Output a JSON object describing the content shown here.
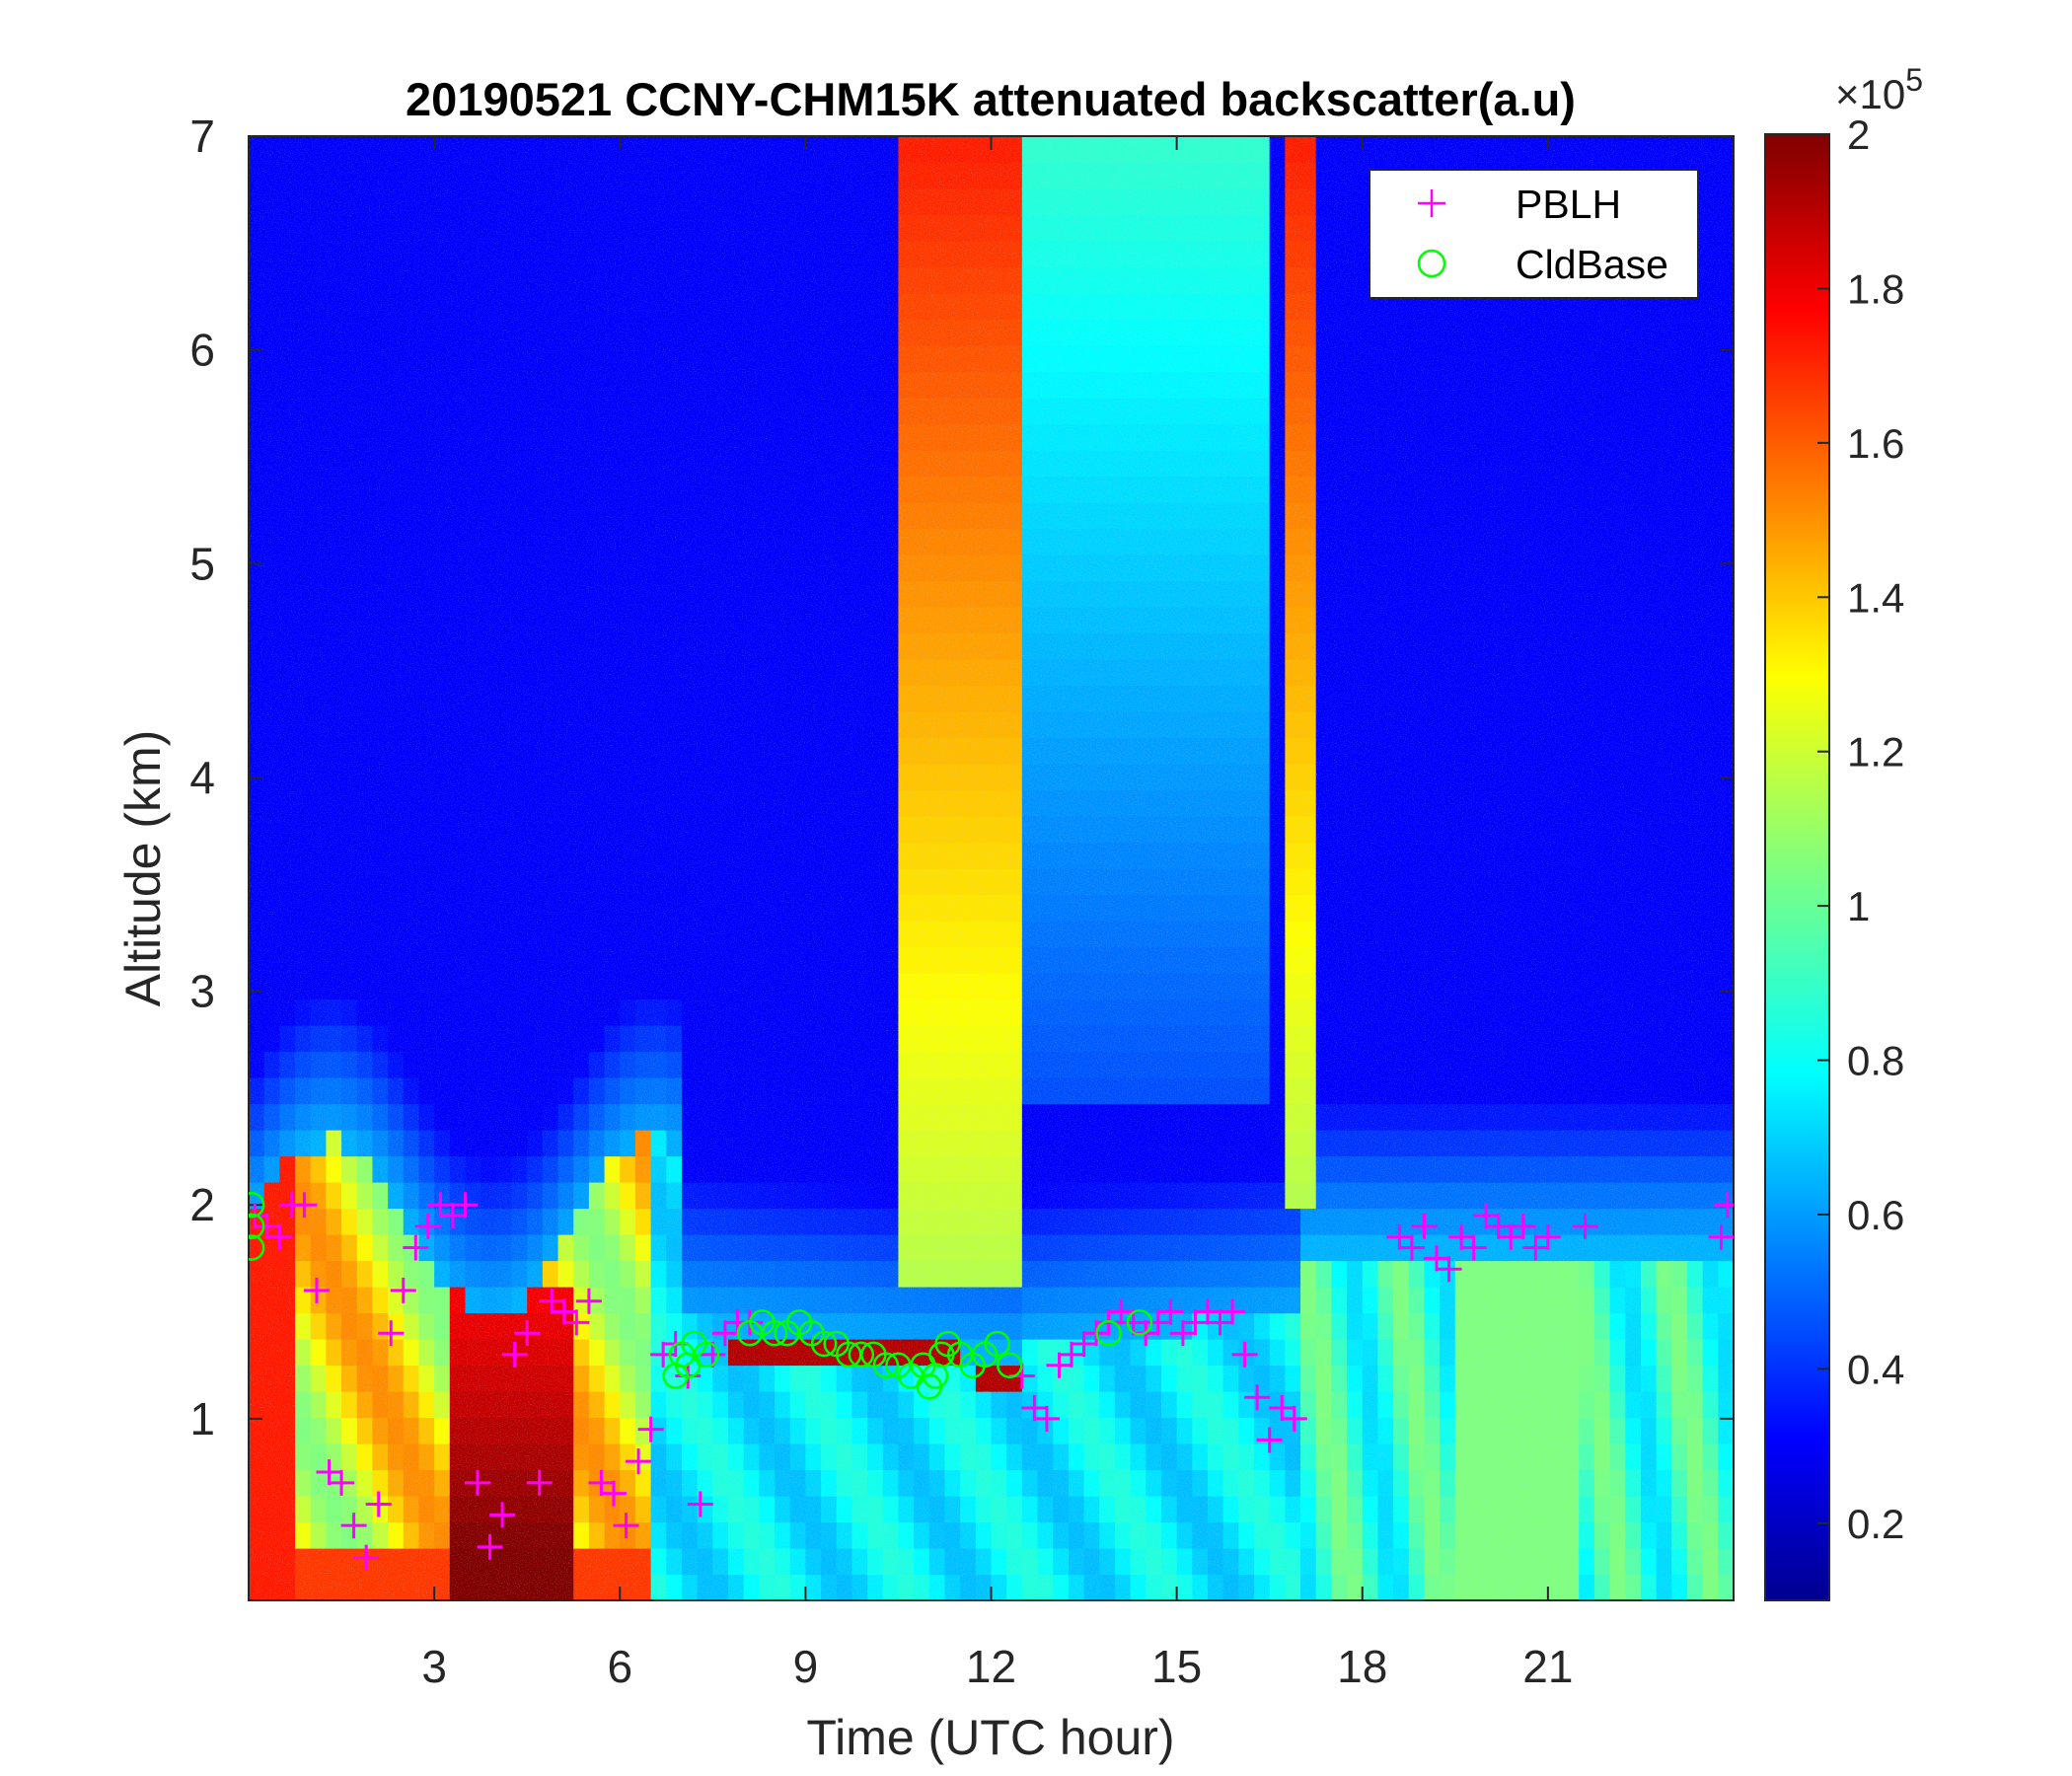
{
  "chart_data": {
    "type": "heatmap",
    "title": "20190521 CCNY-CHM15K attenuated backscatter(a.u)",
    "xlabel": "Time (UTC hour)",
    "ylabel": "Altitude (km)",
    "xlim": [
      0,
      24
    ],
    "ylim": [
      0.15,
      7
    ],
    "x_ticks": [
      3,
      6,
      9,
      12,
      15,
      18,
      21
    ],
    "y_ticks": [
      1,
      2,
      3,
      4,
      5,
      6,
      7
    ],
    "colorbar": {
      "colormap": "jet",
      "range": [
        0.1,
        2
      ],
      "ticks": [
        0.2,
        0.4,
        0.6,
        0.8,
        1,
        1.2,
        1.4,
        1.6,
        1.8,
        2
      ],
      "exponent_label": "×10",
      "exponent_power": "5"
    },
    "legend": {
      "position": "top-right",
      "entries": [
        {
          "label": "PBLH",
          "marker": "+",
          "color": "#ff00ff"
        },
        {
          "label": "CldBase",
          "marker": "o",
          "color": "#00ff00"
        }
      ]
    },
    "series": [
      {
        "name": "PBLH",
        "marker": "+",
        "color": "#ff00ff",
        "x": [
          0.1,
          0.3,
          0.5,
          0.7,
          0.9,
          1.1,
          1.3,
          1.5,
          1.7,
          1.9,
          2.1,
          2.3,
          2.5,
          2.7,
          2.9,
          3.1,
          3.3,
          3.5,
          3.7,
          3.9,
          4.1,
          4.3,
          4.5,
          4.7,
          4.9,
          5.1,
          5.3,
          5.5,
          5.7,
          5.9,
          6.1,
          6.3,
          6.5,
          6.7,
          6.9,
          7.1,
          7.3,
          7.5,
          7.7,
          7.9,
          8.1,
          12.5,
          12.7,
          12.9,
          13.1,
          13.3,
          13.5,
          13.7,
          13.9,
          14.1,
          14.3,
          14.5,
          14.7,
          14.9,
          15.1,
          15.3,
          15.5,
          15.7,
          15.9,
          16.1,
          16.3,
          16.5,
          16.7,
          16.9,
          18.6,
          18.8,
          19.0,
          19.2,
          19.4,
          19.6,
          19.8,
          20.0,
          20.2,
          20.4,
          20.6,
          20.8,
          21.0,
          21.6,
          23.8,
          23.9
        ],
        "y": [
          1.95,
          1.9,
          1.85,
          2.0,
          2.0,
          1.6,
          0.75,
          0.7,
          0.5,
          0.35,
          0.6,
          1.4,
          1.6,
          1.8,
          1.9,
          2.0,
          1.95,
          2.0,
          0.7,
          0.4,
          0.55,
          1.3,
          1.4,
          0.7,
          1.55,
          1.5,
          1.45,
          1.55,
          0.7,
          0.65,
          0.5,
          0.8,
          0.95,
          1.3,
          1.35,
          1.2,
          0.6,
          1.3,
          1.4,
          1.45,
          1.45,
          1.2,
          1.05,
          1.0,
          1.25,
          1.3,
          1.35,
          1.4,
          1.45,
          1.5,
          1.45,
          1.4,
          1.45,
          1.5,
          1.4,
          1.45,
          1.5,
          1.45,
          1.5,
          1.3,
          1.1,
          0.9,
          1.05,
          1.0,
          1.85,
          1.8,
          1.9,
          1.75,
          1.7,
          1.85,
          1.8,
          1.95,
          1.9,
          1.85,
          1.9,
          1.8,
          1.85,
          1.9,
          1.85,
          2.0
        ]
      },
      {
        "name": "CldBase",
        "marker": "o",
        "color": "#00ff00",
        "x": [
          0.05,
          0.05,
          0.05,
          6.9,
          7.0,
          7.1,
          7.2,
          7.4,
          8.1,
          8.3,
          8.5,
          8.7,
          8.9,
          9.1,
          9.3,
          9.5,
          9.7,
          9.9,
          10.1,
          10.3,
          10.5,
          10.7,
          10.9,
          11.0,
          11.1,
          11.2,
          11.3,
          11.5,
          11.7,
          11.9,
          12.1,
          12.3,
          13.9,
          14.4
        ],
        "y": [
          2.0,
          1.9,
          1.8,
          1.2,
          1.3,
          1.25,
          1.35,
          1.3,
          1.4,
          1.45,
          1.4,
          1.4,
          1.45,
          1.4,
          1.35,
          1.35,
          1.3,
          1.3,
          1.3,
          1.25,
          1.25,
          1.2,
          1.25,
          1.15,
          1.2,
          1.3,
          1.35,
          1.3,
          1.25,
          1.3,
          1.35,
          1.25,
          1.4,
          1.45
        ]
      }
    ]
  }
}
